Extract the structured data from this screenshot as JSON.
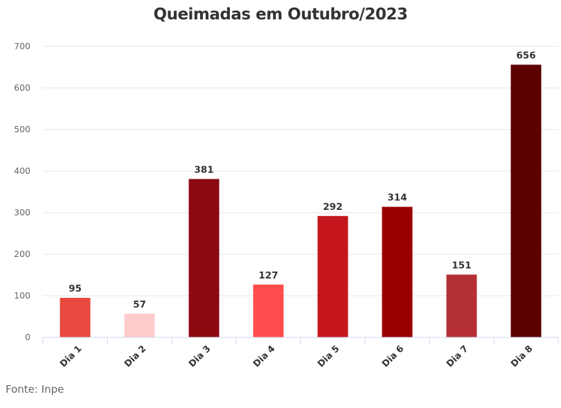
{
  "chart_data": {
    "type": "bar",
    "title": "Queimadas em Outubro/2023",
    "categories": [
      "Dia 1",
      "Dia 2",
      "Dia 3",
      "Dia 4",
      "Dia 5",
      "Dia 6",
      "Dia 7",
      "Dia 8"
    ],
    "values": [
      95,
      57,
      381,
      127,
      292,
      314,
      151,
      656
    ],
    "bar_colors": [
      "#e8483d",
      "#ffcccc",
      "#8b0a10",
      "#ff4d4d",
      "#c4161c",
      "#9b0000",
      "#b53035",
      "#5c0000"
    ],
    "ylim": [
      0,
      700
    ],
    "yticks": [
      0,
      100,
      200,
      300,
      400,
      500,
      600,
      700
    ],
    "xlabel": "",
    "ylabel": "",
    "grid": true,
    "data_labels": true,
    "source": "Fonte: Inpe"
  }
}
